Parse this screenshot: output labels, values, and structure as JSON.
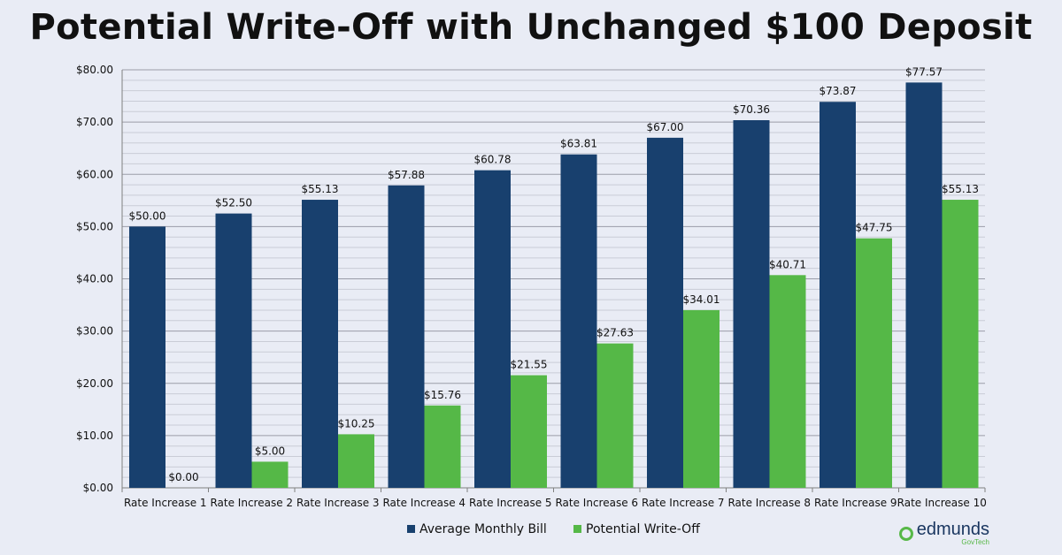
{
  "chart_data": {
    "type": "bar",
    "title": "Potential Write-Off with Unchanged $100 Deposit",
    "categories": [
      "Rate Increase 1",
      "Rate Increase 2",
      "Rate Increase 3",
      "Rate Increase 4",
      "Rate Increase 5",
      "Rate Increase 6",
      "Rate Increase 7",
      "Rate Increase 8",
      "Rate Increase 9",
      "Rate Increase 10"
    ],
    "series": [
      {
        "name": "Average Monthly Bill",
        "color": "#18406e",
        "values": [
          50.0,
          52.5,
          55.13,
          57.88,
          60.78,
          63.81,
          67.0,
          70.36,
          73.87,
          77.57
        ],
        "labels": [
          "$50.00",
          "$52.50",
          "$55.13",
          "$57.88",
          "$60.78",
          "$63.81",
          "$67.00",
          "$70.36",
          "$73.87",
          "$77.57"
        ]
      },
      {
        "name": "Potential Write-Off",
        "color": "#55b847",
        "values": [
          0.0,
          5.0,
          10.25,
          15.76,
          21.55,
          27.63,
          34.01,
          40.71,
          47.75,
          55.13
        ],
        "labels": [
          "$0.00",
          "$5.00",
          "$10.25",
          "$15.76",
          "$21.55",
          "$27.63",
          "$34.01",
          "$40.71",
          "$47.75",
          "$55.13"
        ]
      }
    ],
    "ylim": [
      0,
      80
    ],
    "yticks": [
      0,
      10,
      20,
      30,
      40,
      50,
      60,
      70,
      80
    ],
    "ytick_labels": [
      "$0.00",
      "$10.00",
      "$20.00",
      "$30.00",
      "$40.00",
      "$50.00",
      "$60.00",
      "$70.00",
      "$80.00"
    ],
    "xlabel": "",
    "ylabel": "",
    "grid": true,
    "legend": "bottom"
  },
  "logo": {
    "word": "edmunds",
    "sub": "GovTech"
  }
}
